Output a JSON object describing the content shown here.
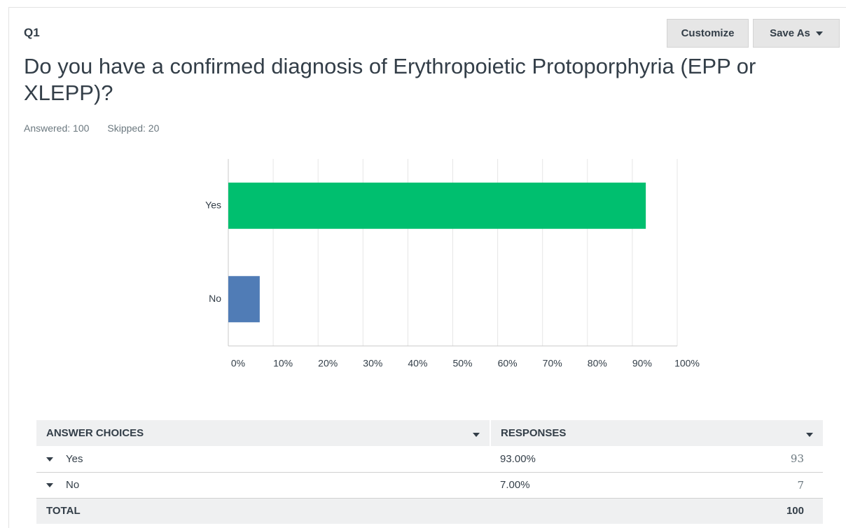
{
  "header": {
    "question_number": "Q1",
    "title": "Do you have a confirmed diagnosis of Erythropoietic Protoporphyria (EPP or XLEPP)?",
    "answered": "Answered: 100",
    "skipped": "Skipped: 20",
    "buttons": [
      "Customize",
      "Save As"
    ]
  },
  "chart_data": {
    "type": "bar",
    "orientation": "horizontal",
    "categories": [
      "Yes",
      "No"
    ],
    "values": [
      93,
      7
    ],
    "colors": [
      "#00bf6f",
      "#507cb6"
    ],
    "xlim": [
      0,
      100
    ],
    "xticks": [
      {
        "value": 0,
        "label": "0%"
      },
      {
        "value": 10,
        "label": "10%"
      },
      {
        "value": 20,
        "label": "20%"
      },
      {
        "value": 30,
        "label": "30%"
      },
      {
        "value": 40,
        "label": "40%"
      },
      {
        "value": 50,
        "label": "50%"
      },
      {
        "value": 60,
        "label": "60%"
      },
      {
        "value": 70,
        "label": "70%"
      },
      {
        "value": 80,
        "label": "80%"
      },
      {
        "value": 90,
        "label": "90%"
      },
      {
        "value": 100,
        "label": "100%"
      }
    ],
    "grid": true
  },
  "table": {
    "columns": [
      "ANSWER CHOICES",
      "RESPONSES"
    ],
    "rows": [
      [
        "Yes",
        "93.00%",
        93
      ],
      [
        "No",
        "7.00%",
        7
      ]
    ],
    "total": [
      "TOTAL",
      100
    ]
  }
}
